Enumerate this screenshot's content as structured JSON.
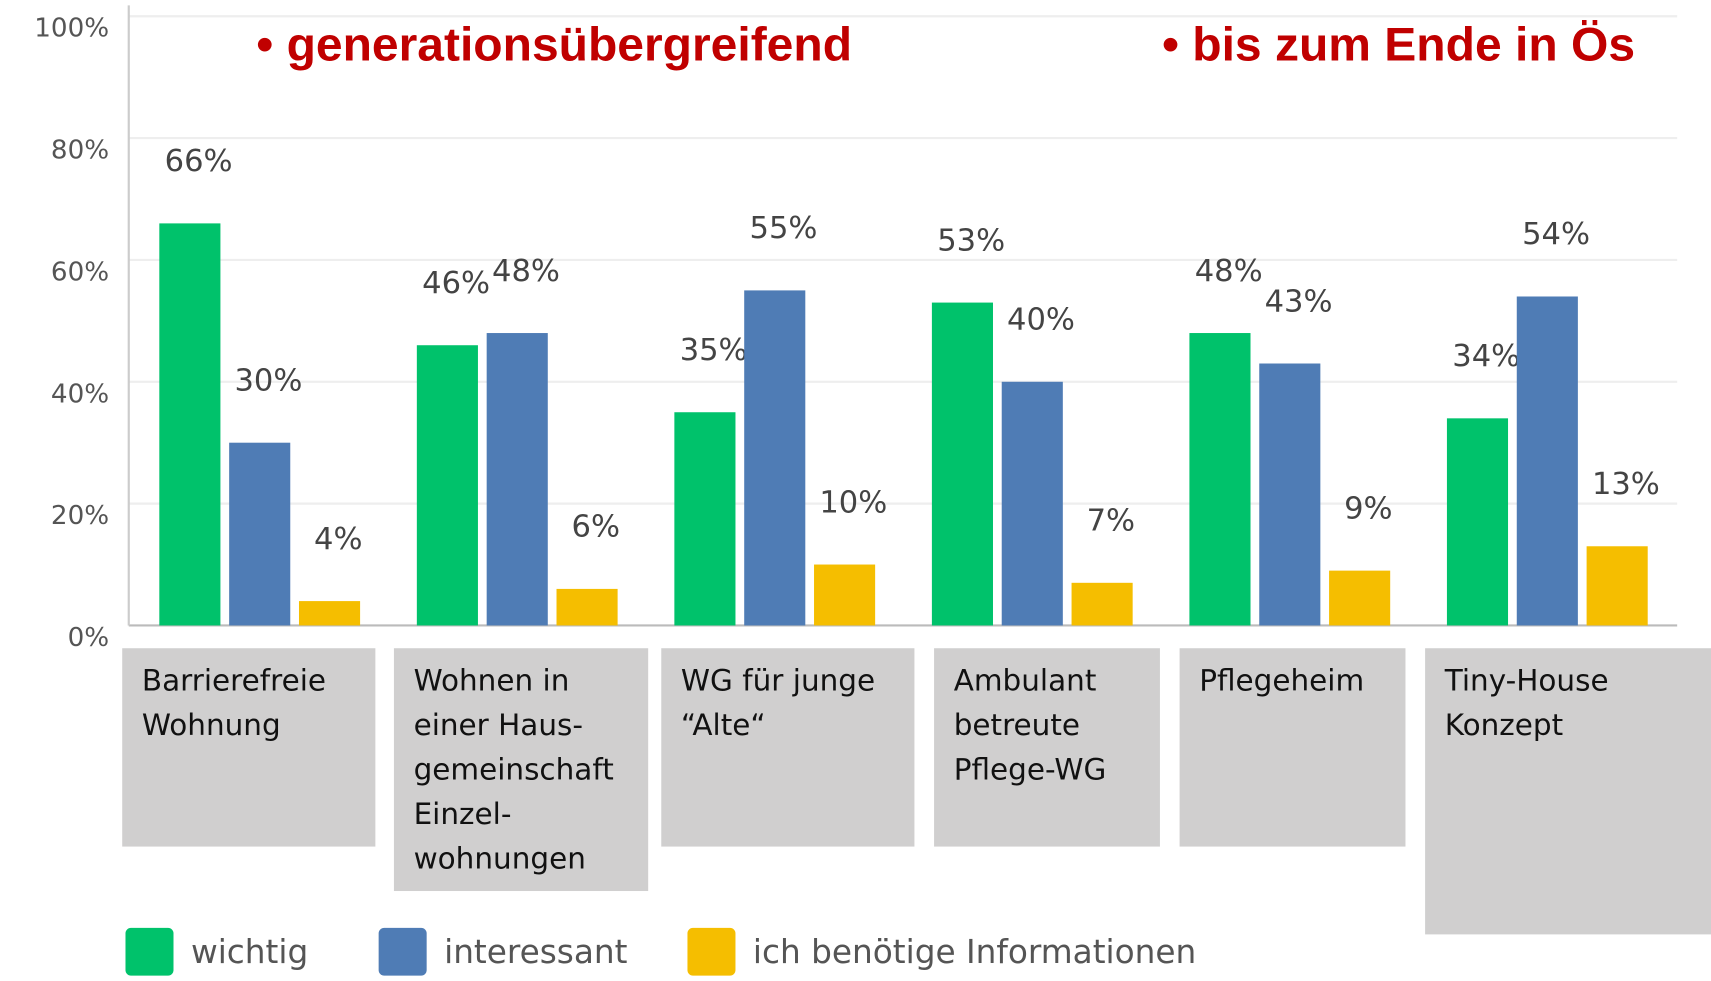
{
  "chart_data": {
    "type": "bar",
    "annotations": [
      "•  generationsübergreifend",
      "•  bis zum Ende in Ös"
    ],
    "categories": [
      "Barrierefreie\nWohnung",
      "Wohnen in\neiner Haus-\ngemeinschaft\nEinzel-\nwohnungen",
      "WG für junge\n“Alte“",
      "Ambulant\nbetreute\nPflege-WG",
      "Pflegeheim",
      "Tiny-House\nKonzept"
    ],
    "series": [
      {
        "name": "wichtig",
        "color": "#00c26b",
        "values": [
          66,
          46,
          35,
          53,
          48,
          34
        ],
        "value_labels": [
          "66%",
          "46%",
          "35%",
          "53%",
          "48%",
          "34%"
        ]
      },
      {
        "name": "interessant",
        "color": "#4f7cb5",
        "values": [
          30,
          48,
          55,
          40,
          43,
          54
        ],
        "value_labels": [
          "30%",
          "48%",
          "55%",
          "40%",
          "43%",
          "54%"
        ]
      },
      {
        "name": "ich benötige Informationen",
        "color": "#f5be00",
        "values": [
          4,
          6,
          10,
          7,
          9,
          13
        ],
        "value_labels": [
          "4%",
          "6%",
          "10%",
          "7%",
          "9%",
          "13%"
        ]
      }
    ],
    "ylim": [
      0,
      100
    ],
    "yticks": [
      {
        "value": 0,
        "label": "0%"
      },
      {
        "value": 20,
        "label": "20%"
      },
      {
        "value": 40,
        "label": "40%"
      },
      {
        "value": 60,
        "label": "60%"
      },
      {
        "value": 80,
        "label": "80%"
      },
      {
        "value": 100,
        "label": "100%"
      }
    ],
    "grid": true,
    "legend": "bottom"
  }
}
